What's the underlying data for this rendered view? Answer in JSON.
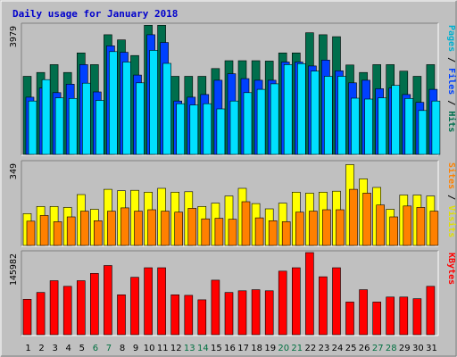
{
  "chart_data": {
    "type": "bar",
    "title": "Daily usage for January 2018",
    "categories": [
      "1",
      "2",
      "3",
      "4",
      "5",
      "6",
      "7",
      "8",
      "9",
      "10",
      "11",
      "12",
      "13",
      "14",
      "15",
      "16",
      "17",
      "18",
      "19",
      "20",
      "21",
      "22",
      "23",
      "24",
      "25",
      "26",
      "27",
      "28",
      "29",
      "30",
      "31"
    ],
    "weekend_days": [
      "6",
      "7",
      "13",
      "14",
      "20",
      "21",
      "27",
      "28"
    ],
    "panels": [
      {
        "id": "top",
        "ymax_label": "3979",
        "ylim": [
          0,
          3979
        ],
        "series": [
          {
            "name": "Hits",
            "color": "#006e4c",
            "values": [
              2400,
              2520,
              2760,
              2520,
              3120,
              2760,
              3680,
              3520,
              3040,
              3970,
              3970,
              2400,
              2400,
              2400,
              2640,
              2880,
              2880,
              2880,
              2870,
              3120,
              3120,
              3740,
              3680,
              3620,
              2750,
              2520,
              2760,
              2760,
              2560,
              2400,
              2760
            ]
          },
          {
            "name": "Files",
            "color": "#0040ff",
            "values": [
              1760,
              2040,
              1900,
              2160,
              2760,
              1920,
              3340,
              3140,
              2440,
              3680,
              3440,
              1640,
              1760,
              1840,
              2280,
              2480,
              2330,
              2280,
              2280,
              2840,
              2840,
              2720,
              2900,
              2570,
              2200,
              2280,
              2020,
              2040,
              1840,
              1600,
              2000
            ]
          },
          {
            "name": "Pages",
            "color": "#00e0ff",
            "values": [
              1640,
              2300,
              1740,
              1720,
              2190,
              1660,
              3160,
              2840,
              2200,
              3200,
              2800,
              1560,
              1520,
              1560,
              1400,
              1640,
              1900,
              2000,
              2170,
              2760,
              2790,
              2560,
              2400,
              2400,
              1730,
              1700,
              1740,
              2120,
              1720,
              1350,
              1640
            ]
          }
        ]
      },
      {
        "id": "middle",
        "ymax_label": "349",
        "ylim": [
          0,
          349
        ],
        "series": [
          {
            "name": "Visits",
            "color": "#ffff00",
            "values": [
              134,
              164,
              164,
              160,
              214,
              152,
              236,
              230,
              232,
              224,
              240,
              224,
              226,
              164,
              178,
              208,
              240,
              176,
              154,
              178,
              224,
              220,
              224,
              228,
              340,
              280,
              244,
              152,
              212,
              212,
              208
            ]
          },
          {
            "name": "Sites",
            "color": "#ff8000",
            "values": [
              102,
              126,
              100,
              120,
              144,
              104,
              144,
              158,
              144,
              150,
              144,
              140,
              156,
              112,
              114,
              110,
              184,
              116,
              104,
              100,
              140,
              144,
              150,
              150,
              236,
              220,
              170,
              120,
              166,
              160,
              144
            ]
          }
        ]
      },
      {
        "id": "bottom",
        "ymax_label": "145982",
        "ylim": [
          0,
          145982
        ],
        "series": [
          {
            "name": "KBytes",
            "color": "#ff0000",
            "values": [
              63000,
              75000,
              96000,
              86000,
              96000,
              109000,
              123000,
              71000,
              102000,
              119000,
              119000,
              71000,
              70000,
              62000,
              97000,
              75000,
              78000,
              80000,
              78000,
              113000,
              119000,
              145982,
              103000,
              119000,
              58000,
              80000,
              58000,
              67000,
              67000,
              64000,
              86000
            ]
          }
        ]
      }
    ],
    "right_labels": [
      {
        "parts": [
          {
            "text": "Pages",
            "color": "#00b0d0"
          },
          {
            "text": " / ",
            "color": "#000000"
          },
          {
            "text": "Files",
            "color": "#0040ff"
          },
          {
            "text": " / ",
            "color": "#000000"
          },
          {
            "text": "Hits",
            "color": "#006e4c"
          }
        ]
      },
      {
        "parts": [
          {
            "text": "Sites",
            "color": "#ff8000"
          },
          {
            "text": " / ",
            "color": "#000000"
          },
          {
            "text": "Visits",
            "color": "#e0e000"
          }
        ]
      },
      {
        "parts": [
          {
            "text": "KBytes",
            "color": "#ff0000"
          }
        ]
      }
    ],
    "colors": {
      "background": "#c0c0c0",
      "panel": "#c0c0c0",
      "weekday_label": "#000000",
      "weekend_label": "#007040"
    }
  }
}
